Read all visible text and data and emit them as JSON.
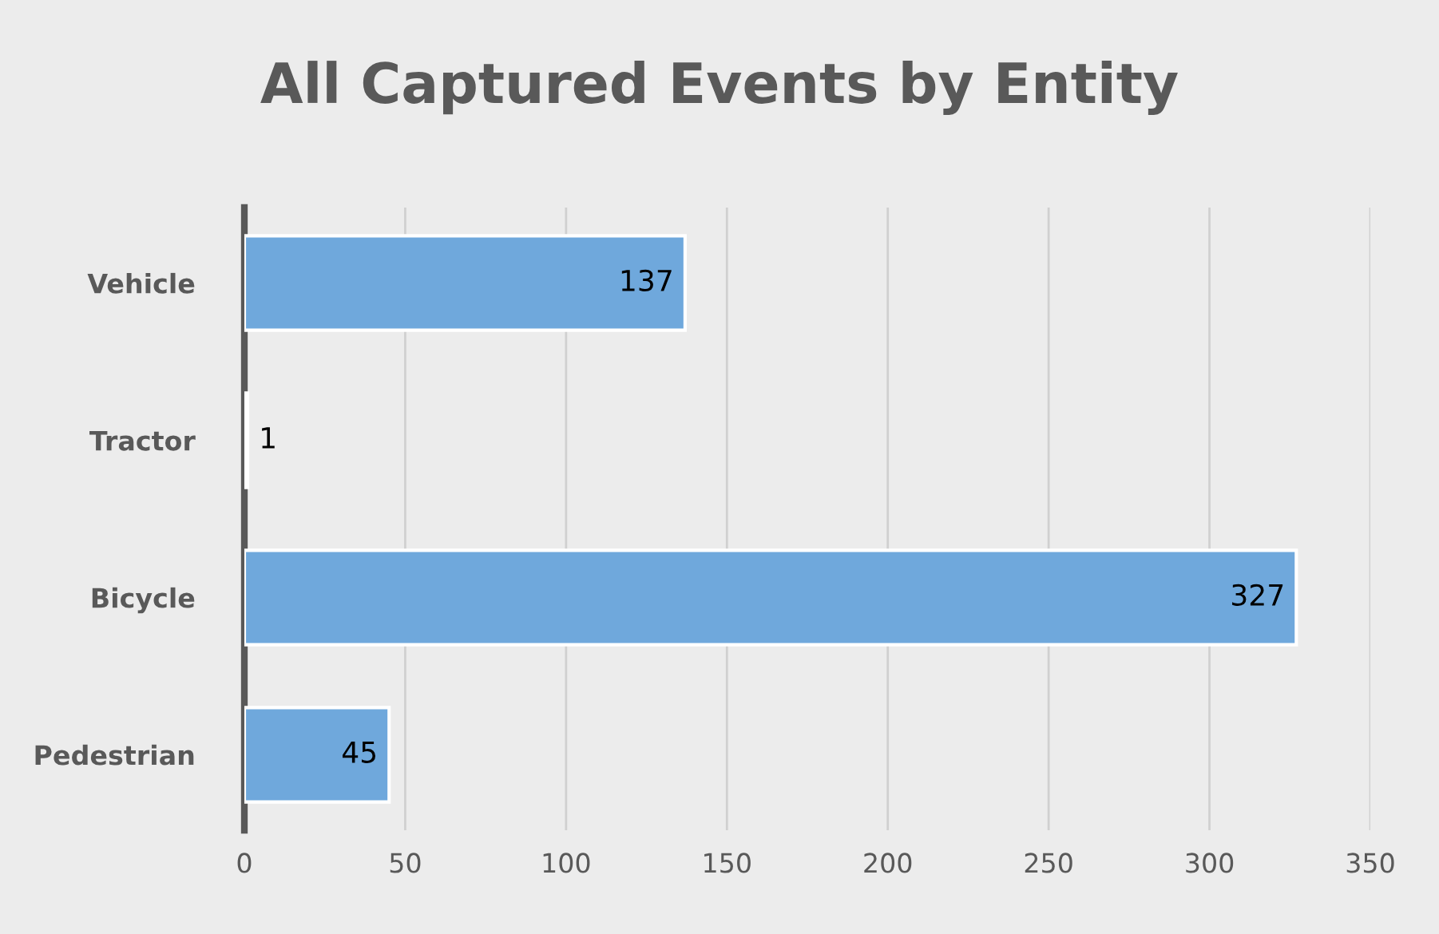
{
  "chart_data": {
    "type": "bar",
    "orientation": "horizontal",
    "title": "All Captured Events by Entity",
    "categories": [
      "Vehicle",
      "Tractor",
      "Bicycle",
      "Pedestrian"
    ],
    "values": [
      137,
      1,
      327,
      45
    ],
    "color": "#6fa8dc",
    "xlim": [
      0,
      350
    ],
    "xticks": [
      0,
      50,
      100,
      150,
      200,
      250,
      300,
      350
    ],
    "grid": "x",
    "data_labels": true,
    "legend": false
  }
}
